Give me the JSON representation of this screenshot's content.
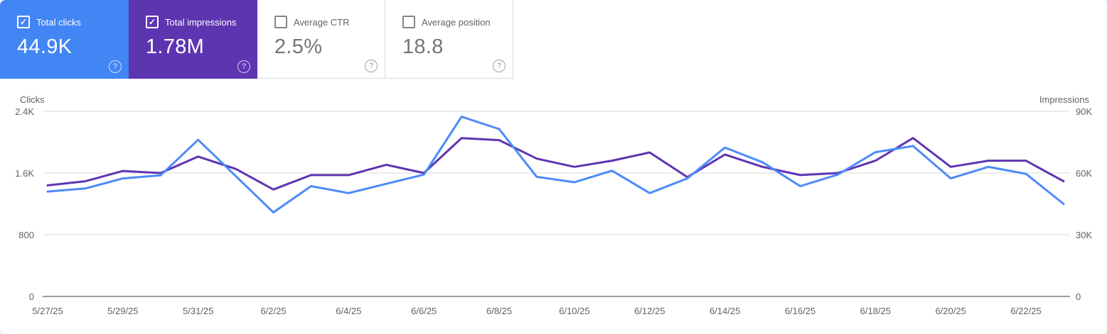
{
  "icons": {
    "check": "✓",
    "help": "?"
  },
  "cards": [
    {
      "label": "Total clicks",
      "value": "44.9K",
      "checked": true,
      "bg": "#4285f4",
      "style": "colored"
    },
    {
      "label": "Total impressions",
      "value": "1.78M",
      "checked": true,
      "bg": "#5e35b1",
      "style": "colored"
    },
    {
      "label": "Average CTR",
      "value": "2.5%",
      "checked": false,
      "bg": "#ffffff",
      "style": "white"
    },
    {
      "label": "Average position",
      "value": "18.8",
      "checked": false,
      "bg": "#ffffff",
      "style": "white"
    }
  ],
  "chart_data": {
    "type": "line",
    "x": [
      "5/27/25",
      "5/28/25",
      "5/29/25",
      "5/30/25",
      "5/31/25",
      "6/1/25",
      "6/2/25",
      "6/3/25",
      "6/4/25",
      "6/5/25",
      "6/6/25",
      "6/7/25",
      "6/8/25",
      "6/9/25",
      "6/10/25",
      "6/11/25",
      "6/12/25",
      "6/13/25",
      "6/14/25",
      "6/15/25",
      "6/16/25",
      "6/17/25",
      "6/18/25",
      "6/19/25",
      "6/20/25",
      "6/21/25",
      "6/22/25",
      "6/23/25"
    ],
    "x_label_every": 2,
    "series": [
      {
        "name": "Impressions",
        "axis": "right",
        "color": "#5e35b1",
        "values": [
          54000,
          56000,
          61000,
          60000,
          68000,
          62000,
          52000,
          59000,
          59000,
          64000,
          60000,
          77000,
          76000,
          67000,
          63000,
          66000,
          70000,
          58000,
          69000,
          63000,
          59000,
          60000,
          66000,
          77000,
          63000,
          66000,
          66000,
          56000
        ]
      },
      {
        "name": "Clicks",
        "axis": "left",
        "color": "#4d8bf8",
        "values": [
          1360,
          1400,
          1530,
          1570,
          2030,
          1560,
          1090,
          1430,
          1340,
          1460,
          1580,
          2330,
          2170,
          1550,
          1480,
          1630,
          1340,
          1530,
          1930,
          1740,
          1430,
          1580,
          1870,
          1950,
          1530,
          1680,
          1590,
          1200
        ]
      }
    ],
    "left_axis": {
      "title": "Clicks",
      "max": 2400,
      "ticks": [
        {
          "value": 2400,
          "label": "2.4K"
        },
        {
          "value": 1600,
          "label": "1.6K"
        },
        {
          "value": 800,
          "label": "800"
        },
        {
          "value": 0,
          "label": "0"
        }
      ]
    },
    "right_axis": {
      "title": "Impressions",
      "max": 90000,
      "ticks": [
        {
          "value": 90000,
          "label": "90K"
        },
        {
          "value": 60000,
          "label": "60K"
        },
        {
          "value": 30000,
          "label": "30K"
        },
        {
          "value": 0,
          "label": "0"
        }
      ]
    },
    "grid": "horizontal",
    "legend": "none",
    "colors": {
      "grid": "#ececec",
      "axis_line": "#9e9e9e",
      "tick_text": "#5f6368"
    }
  }
}
